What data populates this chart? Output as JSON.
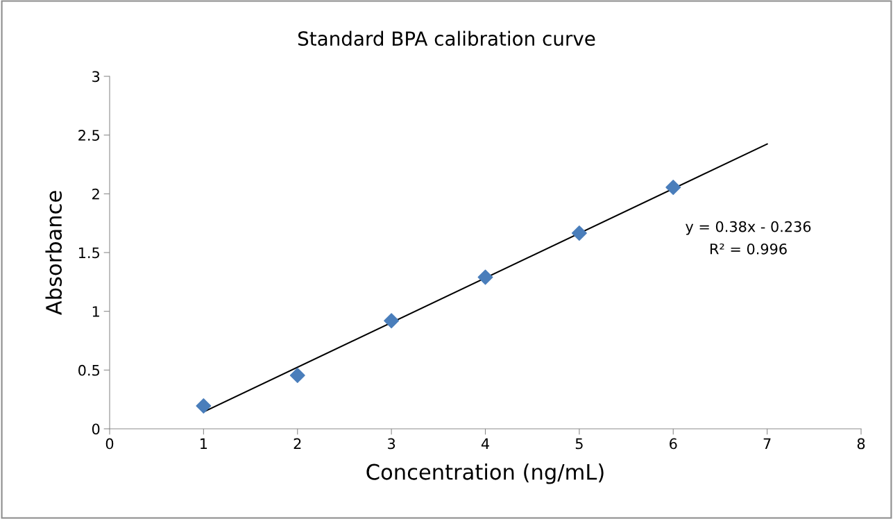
{
  "chart_data": {
    "type": "scatter",
    "title": "Standard BPA calibration curve",
    "xlabel": "Concentration (ng/mL)",
    "ylabel": "Absorbance",
    "x": [
      1,
      2,
      3,
      4,
      5,
      6
    ],
    "series": [
      {
        "color": "#4a7ebb",
        "marker": "diamond",
        "values": [
          0.195,
          0.455,
          0.92,
          1.29,
          1.665,
          2.055
        ]
      },
      {
        "type": "line",
        "color": "#000000",
        "x": [
          1,
          7
        ],
        "values": [
          0.144,
          2.424
        ],
        "line_style": "solid"
      }
    ],
    "xlim": [
      0,
      8
    ],
    "xticks": [
      0,
      1,
      2,
      3,
      4,
      5,
      6,
      7,
      8
    ],
    "ylim": [
      0,
      3
    ],
    "yticks": [
      0,
      0.5,
      1,
      1.5,
      2,
      2.5,
      3
    ],
    "grid": false,
    "legend": false,
    "annotations": [
      "y = 0.38x - 0.236",
      "R² = 0.996"
    ]
  }
}
